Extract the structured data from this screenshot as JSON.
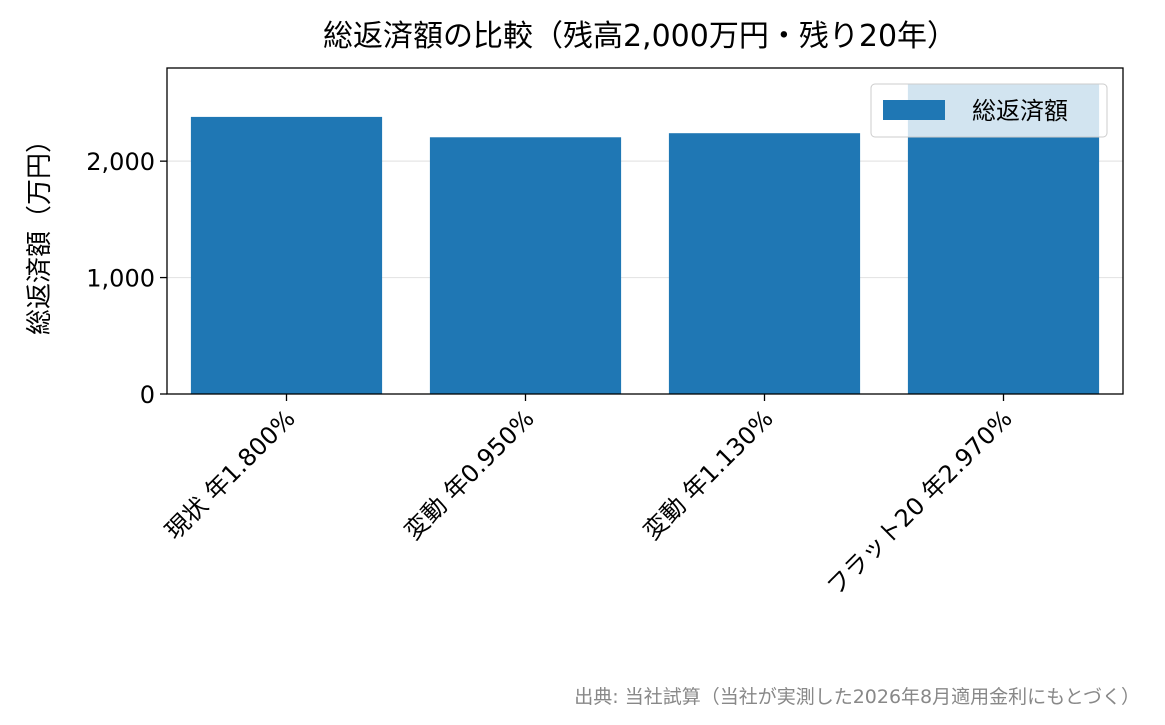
{
  "chart_data": {
    "type": "bar",
    "title": "総返済額の比較（残高2,000万円・残り20年）",
    "xlabel": "",
    "ylabel": "総返済額（万円）",
    "categories": [
      "現状 年1.800%",
      "変動 年0.950%",
      "変動 年1.130%",
      "フラット20 年2.970%"
    ],
    "series": [
      {
        "name": "総返済額",
        "values": [
          2380,
          2205,
          2240,
          2665
        ],
        "color": "#1f77b4"
      }
    ],
    "ylim": [
      0,
      2800
    ],
    "yticks": [
      0,
      1000,
      2000
    ],
    "ytick_labels": [
      "0",
      "1,000",
      "2,000"
    ],
    "grid": "horizontal",
    "legend_position": "top-right",
    "source_note": "出典: 当社試算（当社が実測した2026年8月適用金利にもとづく）"
  }
}
